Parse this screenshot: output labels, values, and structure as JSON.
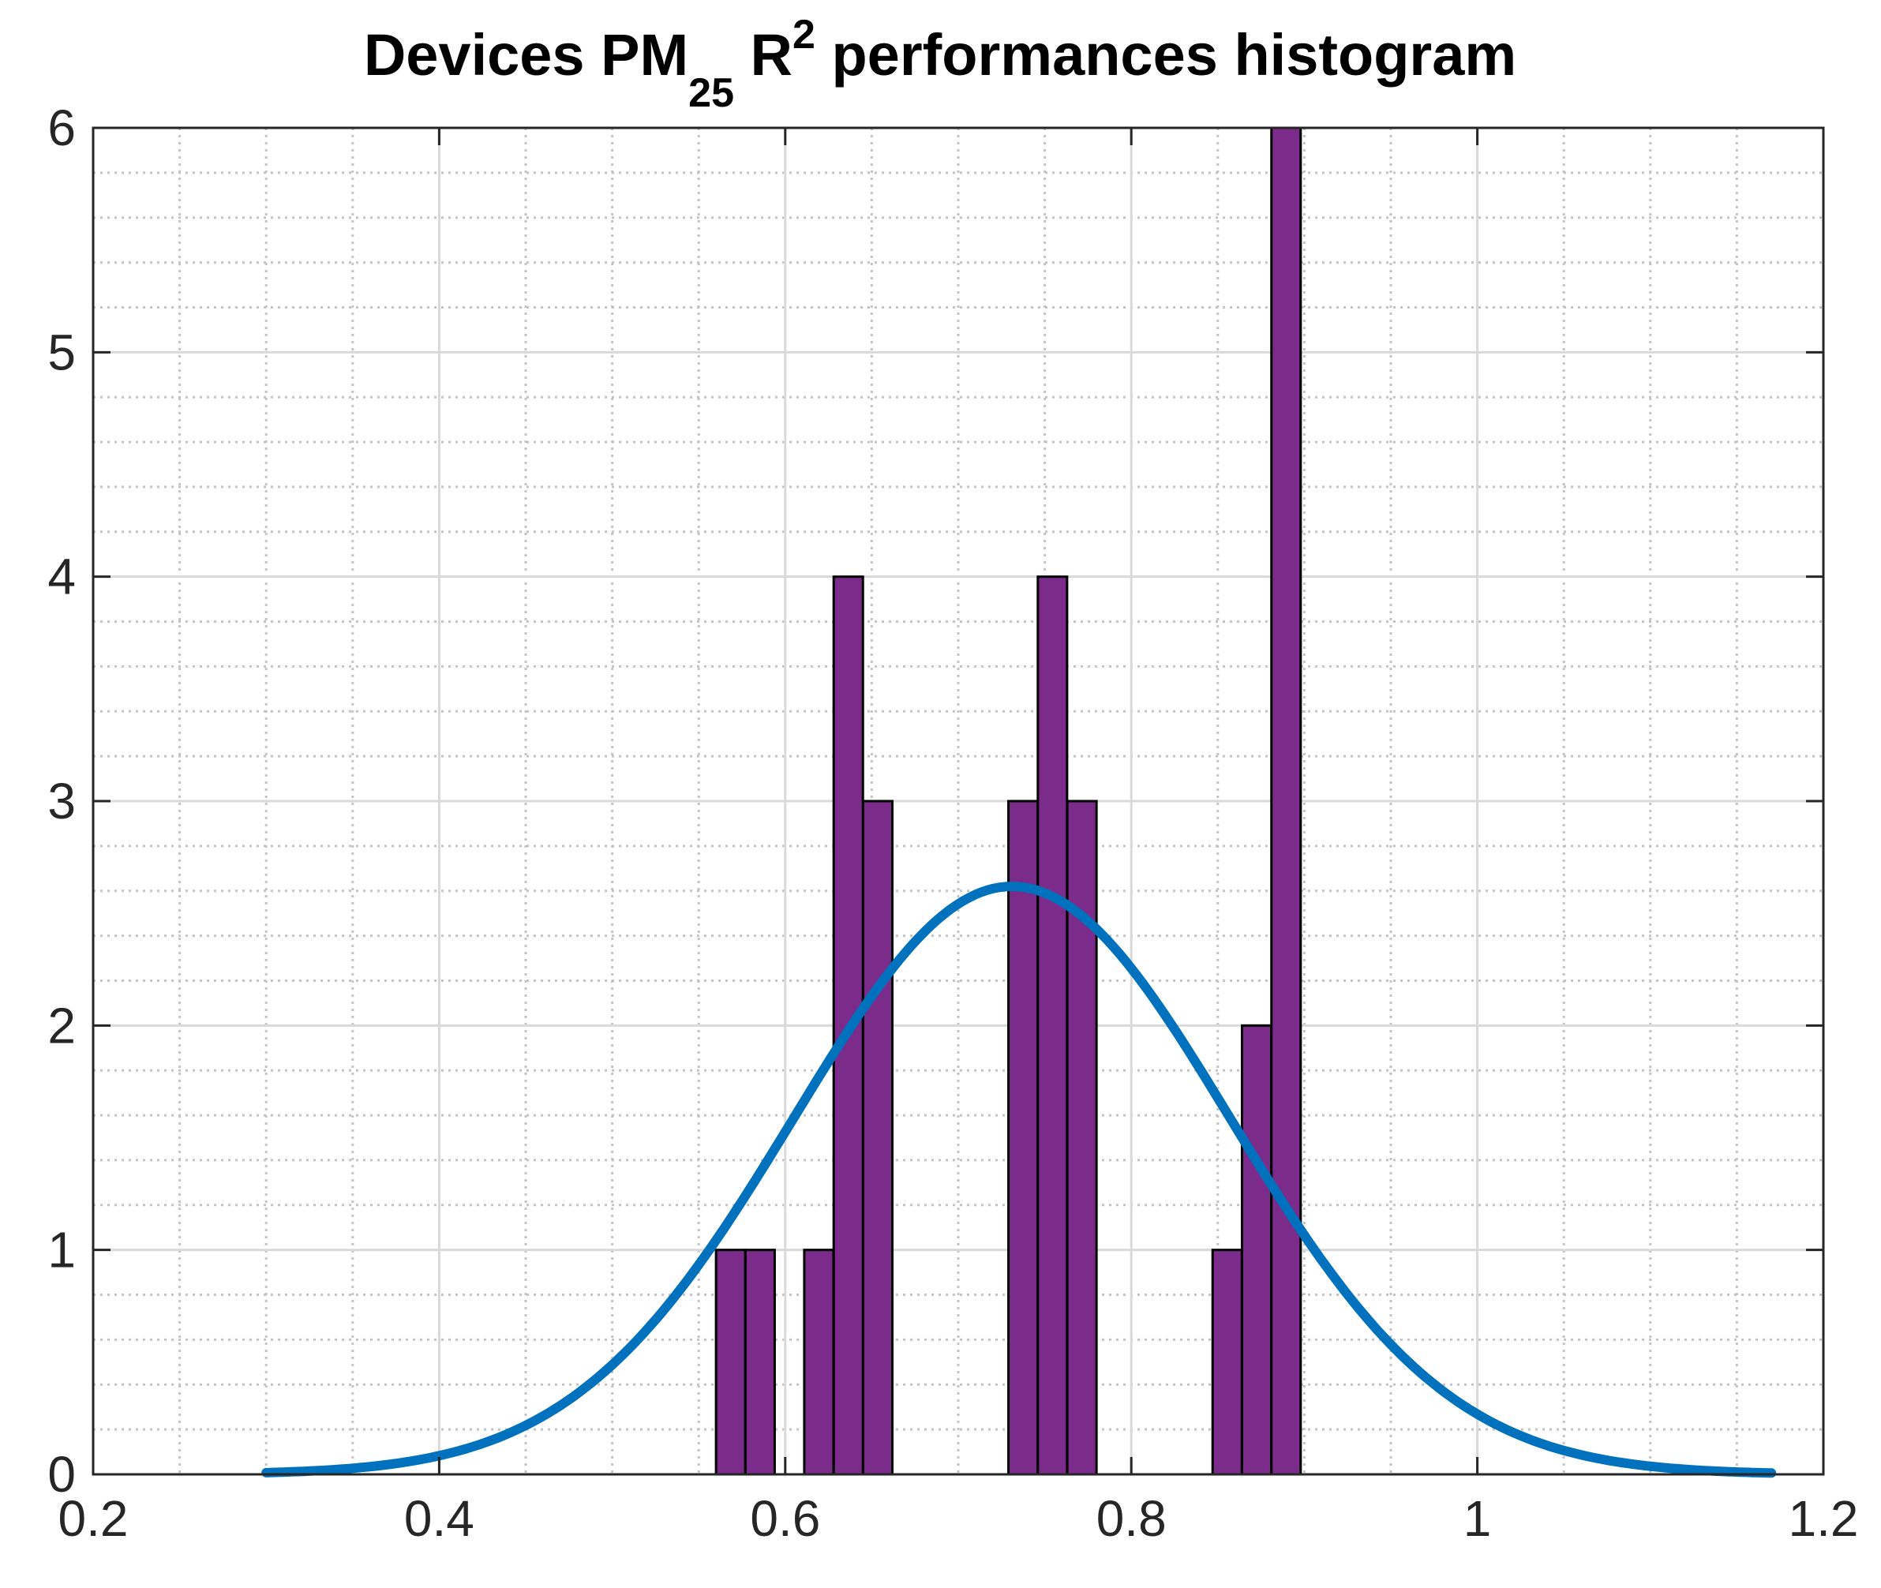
{
  "chart_data": {
    "type": "bar",
    "title": {
      "main": "Devices PM",
      "subscript": "25",
      "mid": " R",
      "superscript": "2",
      "rest": " performances histogram"
    },
    "xlabel": "",
    "ylabel": "",
    "xlim": [
      0.2,
      1.2
    ],
    "ylim": [
      0,
      6
    ],
    "x_ticks": [
      0.2,
      0.4,
      0.6,
      0.8,
      1.0,
      1.2
    ],
    "x_tick_labels": [
      "0.2",
      "0.4",
      "0.6",
      "0.8",
      "1",
      "1.2"
    ],
    "y_ticks": [
      0,
      1,
      2,
      3,
      4,
      5,
      6
    ],
    "y_tick_labels": [
      "0",
      "1",
      "2",
      "3",
      "4",
      "5",
      "6"
    ],
    "grid": true,
    "minor_grid": true,
    "bin_width": 0.0169,
    "bars": [
      {
        "x_start": 0.56,
        "count": 1
      },
      {
        "x_start": 0.577,
        "count": 1
      },
      {
        "x_start": 0.611,
        "count": 1
      },
      {
        "x_start": 0.628,
        "count": 4
      },
      {
        "x_start": 0.645,
        "count": 3
      },
      {
        "x_start": 0.729,
        "count": 3
      },
      {
        "x_start": 0.746,
        "count": 4
      },
      {
        "x_start": 0.763,
        "count": 3
      },
      {
        "x_start": 0.847,
        "count": 1
      },
      {
        "x_start": 0.864,
        "count": 2
      },
      {
        "x_start": 0.881,
        "count": 6
      }
    ],
    "fit_curve": {
      "type": "normal",
      "mean": 0.731,
      "sigma": 0.126,
      "peak": 2.62,
      "x_range": [
        0.3,
        1.17
      ]
    },
    "colors": {
      "bar_fill": "#7B2C8B",
      "bar_edge": "#000000",
      "curve": "#0072BD",
      "grid": "#d9d9d9",
      "axis": "#262626"
    }
  }
}
